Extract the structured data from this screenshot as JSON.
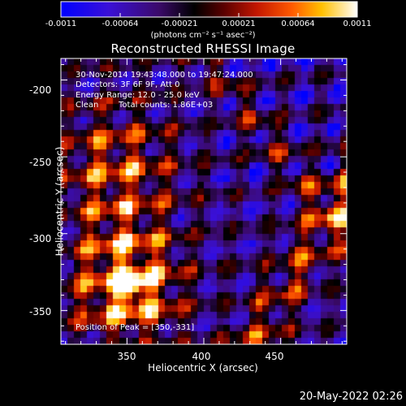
{
  "colorbar": {
    "ticks": [
      "-0.0011",
      "-0.00064",
      "-0.00021",
      "0.00021",
      "0.00064",
      "0.0011"
    ],
    "units": "(photons cm⁻² s⁻¹ asec⁻²)",
    "range": [
      -0.0011,
      0.0011
    ]
  },
  "chart_data": {
    "type": "heatmap",
    "title": "Reconstructed RHESSI Image",
    "xlabel": "Heliocentric X (arcsec)",
    "ylabel": "Heliocentric Y (arcsec)",
    "xlim": [
      307,
      493
    ],
    "ylim": [
      -372,
      -186
    ],
    "x_ticks": [
      "350",
      "400",
      "450"
    ],
    "y_ticks": [
      "-200",
      "-250",
      "-300",
      "-350"
    ],
    "peak": [
      350,
      -331
    ],
    "annotations": {
      "time_range": "30-Nov-2014 19:43:48.000 to 19:47:24.000",
      "detectors": "Detectors: 3F 6F 9F, Att 0",
      "energy": "Energy Range: 12.0 - 25.0 keV",
      "clean": "Clean",
      "total_counts": "Total counts: 1.86E+03",
      "peak_label": "Position of Peak = [350,-331]"
    }
  },
  "footer": {
    "timestamp": "20-May-2022 02:26"
  }
}
